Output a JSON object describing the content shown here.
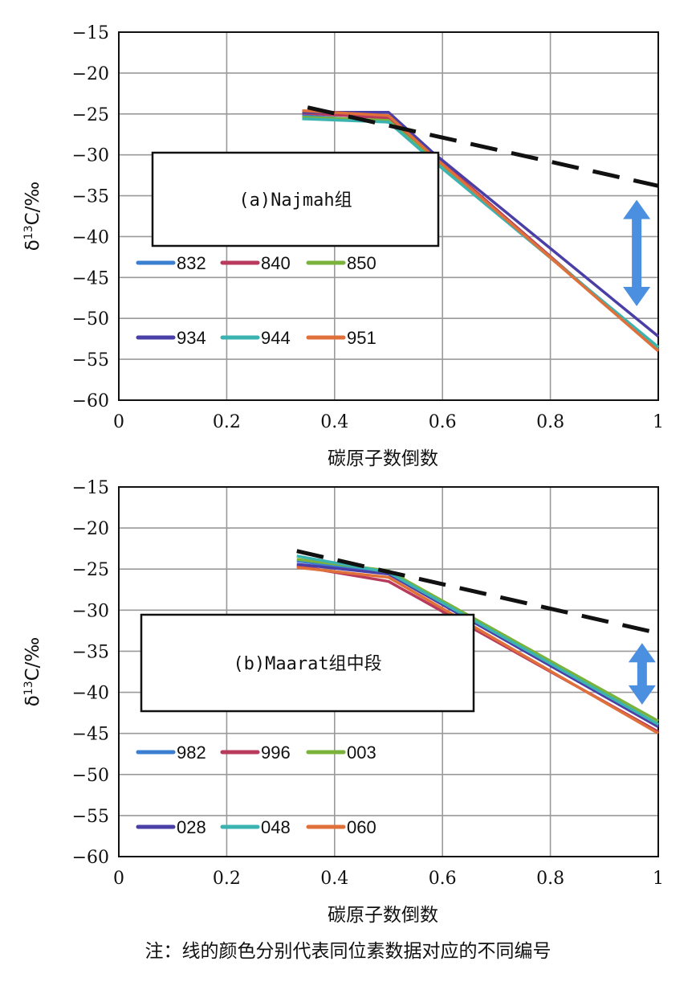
{
  "note": "注：线的颜色分别代表同位素数据对应的不同编号",
  "chart_data": [
    {
      "type": "line",
      "panel_label": "(a)Najmah组",
      "xlabel": "碳原子数倒数",
      "ylabel": "δ13C/‰",
      "xlim": [
        0,
        1
      ],
      "ylim": [
        -60,
        -15
      ],
      "x_ticks": [
        "0",
        "0.2",
        "0.4",
        "0.6",
        "0.8",
        "1"
      ],
      "y_ticks": [
        "−15",
        "−20",
        "−25",
        "−30",
        "−35",
        "−40",
        "−45",
        "−50",
        "−55",
        "−60"
      ],
      "grid": true,
      "series": [
        {
          "name": "832",
          "color": "#3a7fd0",
          "points": [
            [
              0.34,
              -25.2
            ],
            [
              0.5,
              -26.0
            ],
            [
              0.58,
              -30.0
            ],
            [
              1.0,
              -53.8
            ]
          ]
        },
        {
          "name": "840",
          "color": "#b83a5c",
          "points": [
            [
              0.34,
              -24.9
            ],
            [
              0.5,
              -25.5
            ],
            [
              0.58,
              -29.8
            ],
            [
              1.0,
              -53.9
            ]
          ]
        },
        {
          "name": "850",
          "color": "#7ab33c",
          "points": [
            [
              0.34,
              -25.4
            ],
            [
              0.5,
              -25.8
            ],
            [
              0.58,
              -30.4
            ],
            [
              1.0,
              -53.6
            ]
          ]
        },
        {
          "name": "934",
          "color": "#4a3fa6",
          "points": [
            [
              0.34,
              -24.8
            ],
            [
              0.5,
              -24.8
            ],
            [
              0.58,
              -29.6
            ],
            [
              1.0,
              -52.2
            ]
          ]
        },
        {
          "name": "944",
          "color": "#3bb3b0",
          "points": [
            [
              0.34,
              -25.6
            ],
            [
              0.5,
              -26.0
            ],
            [
              0.58,
              -30.6
            ],
            [
              1.0,
              -53.5
            ]
          ]
        },
        {
          "name": "951",
          "color": "#e0703a",
          "points": [
            [
              0.34,
              -24.6
            ],
            [
              0.5,
              -25.2
            ],
            [
              0.58,
              -30.0
            ],
            [
              1.0,
              -54.0
            ]
          ]
        }
      ],
      "dashed_line": [
        [
          0.35,
          -24.2
        ],
        [
          1.0,
          -33.8
        ]
      ],
      "arrow_x": 0.96,
      "arrow_y": [
        -35.5,
        -48.5
      ]
    },
    {
      "type": "line",
      "panel_label": "(b)Maarat组中段",
      "xlabel": "碳原子数倒数",
      "ylabel": "δ13C/‰",
      "xlim": [
        0,
        1
      ],
      "ylim": [
        -60,
        -15
      ],
      "x_ticks": [
        "0",
        "0.2",
        "0.4",
        "0.6",
        "0.8",
        "1"
      ],
      "y_ticks": [
        "−15",
        "−20",
        "−25",
        "−30",
        "−35",
        "−40",
        "−45",
        "−50",
        "−55",
        "−60"
      ],
      "grid": true,
      "series": [
        {
          "name": "982",
          "color": "#3a7fd0",
          "points": [
            [
              0.33,
              -24.0
            ],
            [
              0.5,
              -25.5
            ],
            [
              1.0,
              -44.0
            ]
          ]
        },
        {
          "name": "996",
          "color": "#b83a5c",
          "points": [
            [
              0.33,
              -24.6
            ],
            [
              0.5,
              -26.5
            ],
            [
              1.0,
              -44.8
            ]
          ]
        },
        {
          "name": "003",
          "color": "#7ab33c",
          "points": [
            [
              0.33,
              -23.8
            ],
            [
              0.5,
              -25.2
            ],
            [
              1.0,
              -43.5
            ]
          ]
        },
        {
          "name": "028",
          "color": "#4a3fa6",
          "points": [
            [
              0.33,
              -24.4
            ],
            [
              0.5,
              -25.6
            ],
            [
              1.0,
              -44.2
            ]
          ]
        },
        {
          "name": "048",
          "color": "#3bb3b0",
          "points": [
            [
              0.33,
              -23.4
            ],
            [
              0.5,
              -25.4
            ],
            [
              1.0,
              -43.9
            ]
          ]
        },
        {
          "name": "060",
          "color": "#e0703a",
          "points": [
            [
              0.33,
              -24.8
            ],
            [
              0.5,
              -26.0
            ],
            [
              1.0,
              -45.0
            ]
          ]
        }
      ],
      "dashed_line": [
        [
          0.33,
          -22.8
        ],
        [
          1.0,
          -32.8
        ]
      ],
      "arrow_x": 0.97,
      "arrow_y": [
        -34.0,
        -41.5
      ]
    }
  ]
}
